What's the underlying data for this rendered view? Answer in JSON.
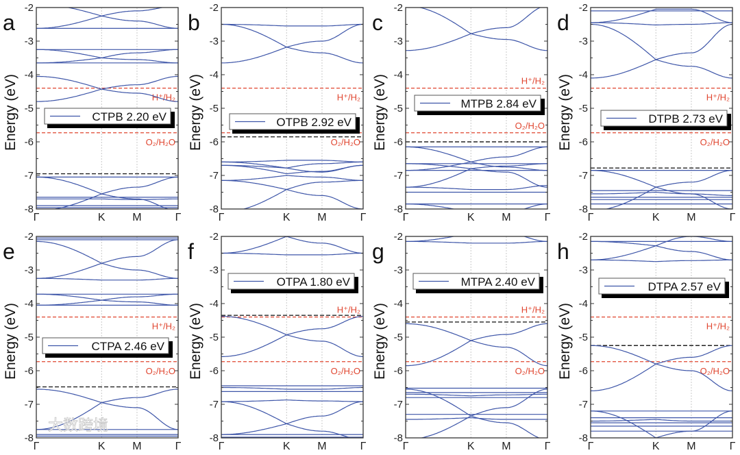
{
  "chart_data": [
    {
      "type": "line",
      "panel": "a",
      "legend": "CTPB 2.20 eV",
      "ylabel": "Energy (eV)",
      "ylim": [
        -8,
        -2
      ],
      "yticks": [
        "-2",
        "-3",
        "-4",
        "-5",
        "-6",
        "-7",
        "-8"
      ],
      "xticks": [
        "Γ",
        "K",
        "M",
        "Γ"
      ],
      "ref_lines": {
        "H+/H2": -4.4,
        "O2/H2O": -5.73
      },
      "vbm": -6.95,
      "bands": [
        [
          -1.9,
          -2.25,
          -2.4,
          -2.62
        ],
        [
          -2.62,
          -2.25,
          -2.1,
          -1.95
        ],
        [
          -2.62,
          -2.62,
          -2.62,
          -2.62
        ],
        [
          -3.25,
          -3.25,
          -3.25,
          -3.25
        ],
        [
          -3.25,
          -3.5,
          -3.55,
          -3.65
        ],
        [
          -3.65,
          -3.5,
          -3.35,
          -3.25
        ],
        [
          -3.65,
          -3.65,
          -3.65,
          -3.65
        ],
        [
          -4.05,
          -4.43,
          -4.55,
          -4.8
        ],
        [
          -4.8,
          -4.43,
          -4.3,
          -4.05
        ],
        [
          -7.05,
          -7.05,
          -7.05,
          -7.05
        ],
        [
          -7.05,
          -7.55,
          -7.7,
          -8.05
        ],
        [
          -8.05,
          -7.55,
          -7.35,
          -7.05
        ],
        [
          -7.65,
          -7.65,
          -7.65,
          -7.65
        ],
        [
          -7.7,
          -7.7,
          -7.72,
          -7.7
        ],
        [
          -7.9,
          -7.9,
          -7.9,
          -7.9
        ],
        [
          -7.96,
          -7.96,
          -7.96,
          -7.96
        ]
      ]
    },
    {
      "type": "line",
      "panel": "b",
      "legend": "OTPB 2.92 eV",
      "ylabel": "Energy (eV)",
      "ylim": [
        -8,
        -2
      ],
      "yticks": [
        "-2",
        "-3",
        "-4",
        "-5",
        "-6",
        "-7",
        "-8"
      ],
      "xticks": [
        "Γ",
        "K",
        "M",
        "Γ"
      ],
      "ref_lines": {
        "H+/H2": -4.4,
        "O2/H2O": -5.73
      },
      "vbm": -5.85,
      "bands": [
        [
          -2.5,
          -2.55,
          -2.55,
          -2.5
        ],
        [
          -2.5,
          -3.18,
          -3.35,
          -3.65
        ],
        [
          -3.65,
          -3.18,
          -3.0,
          -2.5
        ],
        [
          -6.6,
          -6.55,
          -6.55,
          -6.6
        ],
        [
          -6.6,
          -6.78,
          -6.9,
          -6.7
        ],
        [
          -6.7,
          -6.78,
          -6.65,
          -6.6
        ],
        [
          -6.7,
          -6.95,
          -6.88,
          -6.7
        ],
        [
          -7.15,
          -7.0,
          -7.05,
          -7.15
        ],
        [
          -7.15,
          -7.42,
          -7.6,
          -8.0
        ],
        [
          -8.1,
          -7.42,
          -7.2,
          -7.15
        ]
      ]
    },
    {
      "type": "line",
      "panel": "c",
      "legend": "MTPB 2.84 eV",
      "ylabel": "Energy (eV)",
      "ylim": [
        -8,
        -2
      ],
      "yticks": [
        "-2",
        "-3",
        "-4",
        "-5",
        "-6",
        "-7",
        "-8"
      ],
      "xticks": [
        "Γ",
        "K",
        "M",
        "Γ"
      ],
      "ref_lines": {
        "H+/H2": -4.4,
        "O2/H2O": -5.73
      },
      "vbm": -6.0,
      "bands": [
        [
          -1.95,
          -2.78,
          -2.95,
          -3.28
        ],
        [
          -3.28,
          -2.78,
          -2.6,
          -1.95
        ],
        [
          -6.15,
          -6.15,
          -6.15,
          -6.15
        ],
        [
          -6.15,
          -6.6,
          -6.75,
          -6.85
        ],
        [
          -6.85,
          -6.6,
          -6.45,
          -6.15
        ],
        [
          -6.65,
          -6.65,
          -6.65,
          -6.65
        ],
        [
          -6.85,
          -6.85,
          -6.85,
          -6.85
        ],
        [
          -6.65,
          -6.8,
          -6.72,
          -6.65
        ],
        [
          -7.35,
          -6.8,
          -6.9,
          -7.35
        ],
        [
          -7.35,
          -7.42,
          -7.42,
          -7.3
        ],
        [
          -7.5,
          -7.5,
          -7.5,
          -7.5
        ],
        [
          -7.85,
          -7.85,
          -7.85,
          -7.85
        ],
        [
          -7.85,
          -8.1,
          -8.1,
          -7.85
        ]
      ]
    },
    {
      "type": "line",
      "panel": "d",
      "legend": "DTPB 2.73 eV",
      "ylabel": "Energy (eV)",
      "ylim": [
        -8,
        -2
      ],
      "yticks": [
        "-2",
        "-3",
        "-4",
        "-5",
        "-6",
        "-7",
        "-8"
      ],
      "xticks": [
        "Γ",
        "K",
        "M",
        "Γ"
      ],
      "ref_lines": {
        "H+/H2": -4.4,
        "O2/H2O": -5.73
      },
      "vbm": -6.78,
      "bands": [
        [
          -2.1,
          -2.1,
          -2.1,
          -2.1
        ],
        [
          -2.45,
          -2.05,
          -2.05,
          -2.45
        ],
        [
          -2.45,
          -2.52,
          -2.5,
          -2.45
        ],
        [
          -2.5,
          -3.55,
          -3.75,
          -4.1
        ],
        [
          -4.1,
          -3.55,
          -3.35,
          -2.5
        ],
        [
          -6.85,
          -6.85,
          -6.85,
          -6.85
        ],
        [
          -6.85,
          -7.35,
          -7.55,
          -8.0
        ],
        [
          -8.05,
          -7.35,
          -7.2,
          -6.85
        ],
        [
          -7.45,
          -7.45,
          -7.45,
          -7.45
        ],
        [
          -7.55,
          -7.5,
          -7.55,
          -7.6
        ],
        [
          -7.65,
          -7.65,
          -7.65,
          -7.65
        ],
        [
          -7.72,
          -7.72,
          -7.72,
          -7.72
        ],
        [
          -7.85,
          -7.85,
          -7.85,
          -7.85
        ]
      ]
    },
    {
      "type": "line",
      "panel": "e",
      "legend": "CTPA 2.46 eV",
      "ylabel": "Energy (eV)",
      "ylim": [
        -8,
        -2
      ],
      "yticks": [
        "-2",
        "-3",
        "-4",
        "-5",
        "-6",
        "-7",
        "-8"
      ],
      "xticks": [
        "Γ",
        "K",
        "M",
        "Γ"
      ],
      "ref_lines": {
        "H+/H2": -4.4,
        "O2/H2O": -5.73
      },
      "vbm": -6.48,
      "bands": [
        [
          -2.05,
          -2.05,
          -2.05,
          -2.05
        ],
        [
          -2.1,
          -2.1,
          -2.1,
          -2.1
        ],
        [
          -2.15,
          -2.8,
          -3.0,
          -3.25
        ],
        [
          -3.25,
          -2.8,
          -2.6,
          -2.1
        ],
        [
          -3.25,
          -3.3,
          -3.3,
          -3.25
        ],
        [
          -3.72,
          -3.72,
          -3.72,
          -3.72
        ],
        [
          -3.72,
          -3.9,
          -3.95,
          -4.05
        ],
        [
          -4.05,
          -3.9,
          -3.8,
          -3.72
        ],
        [
          -4.05,
          -4.05,
          -4.05,
          -4.05
        ],
        [
          -6.55,
          -6.95,
          -7.1,
          -7.75
        ],
        [
          -7.75,
          -6.95,
          -6.8,
          -6.55
        ],
        [
          -7.75,
          -7.75,
          -7.75,
          -7.75
        ],
        [
          -7.9,
          -7.9,
          -7.9,
          -7.9
        ],
        [
          -7.95,
          -7.95,
          -7.95,
          -7.95
        ]
      ]
    },
    {
      "type": "line",
      "panel": "f",
      "legend": "OTPA 1.80 eV",
      "ylabel": "Energy (eV)",
      "ylim": [
        -8,
        -2
      ],
      "yticks": [
        "-2",
        "-3",
        "-4",
        "-5",
        "-6",
        "-7",
        "-8"
      ],
      "xticks": [
        "Γ",
        "K",
        "M",
        "Γ"
      ],
      "ref_lines": {
        "H+/H2": -4.4,
        "O2/H2O": -5.73
      },
      "vbm": -4.35,
      "bands": [
        [
          -2.5,
          -2.0,
          -2.2,
          -2.5
        ],
        [
          -2.5,
          -2.55,
          -2.55,
          -2.5
        ],
        [
          -4.38,
          -4.93,
          -5.12,
          -5.58
        ],
        [
          -5.58,
          -4.93,
          -4.75,
          -4.38
        ],
        [
          -6.45,
          -6.45,
          -6.45,
          -6.45
        ],
        [
          -6.5,
          -6.55,
          -6.55,
          -6.5
        ],
        [
          -6.62,
          -6.62,
          -6.62,
          -6.62
        ],
        [
          -6.92,
          -6.87,
          -6.9,
          -6.92
        ],
        [
          -6.92,
          -7.58,
          -7.8,
          -8.05
        ],
        [
          -7.9,
          -7.58,
          -7.35,
          -6.92
        ],
        [
          -7.9,
          -7.9,
          -7.9,
          -7.9
        ],
        [
          -7.98,
          -7.98,
          -7.98,
          -7.98
        ]
      ]
    },
    {
      "type": "line",
      "panel": "g",
      "legend": "MTPA 2.40 eV",
      "ylabel": "Energy (eV)",
      "ylim": [
        -8,
        -2
      ],
      "yticks": [
        "-2",
        "-3",
        "-4",
        "-5",
        "-6",
        "-7",
        "-8"
      ],
      "xticks": [
        "Γ",
        "K",
        "M",
        "Γ"
      ],
      "ref_lines": {
        "H+/H2": -4.4,
        "O2/H2O": -5.73
      },
      "vbm": -4.55,
      "bands": [
        [
          -2.15,
          -2.2,
          -2.2,
          -2.15
        ],
        [
          -2.15,
          -1.9,
          -1.9,
          -2.15
        ],
        [
          -4.6,
          -5.1,
          -5.3,
          -5.85
        ],
        [
          -5.85,
          -5.1,
          -4.92,
          -4.6
        ],
        [
          -6.52,
          -6.52,
          -6.52,
          -6.52
        ],
        [
          -6.65,
          -6.65,
          -6.65,
          -6.65
        ],
        [
          -6.7,
          -6.75,
          -6.72,
          -6.7
        ],
        [
          -6.8,
          -6.8,
          -6.8,
          -6.8
        ],
        [
          -6.55,
          -7.35,
          -7.55,
          -8.05
        ],
        [
          -8.05,
          -7.35,
          -7.1,
          -6.55
        ],
        [
          -7.3,
          -7.3,
          -7.3,
          -7.3
        ],
        [
          -7.45,
          -7.4,
          -7.45,
          -7.45
        ]
      ]
    },
    {
      "type": "line",
      "panel": "h",
      "legend": "DTPA 2.57 eV",
      "ylabel": "Energy (eV)",
      "ylim": [
        -8,
        -2
      ],
      "yticks": [
        "-2",
        "-3",
        "-4",
        "-5",
        "-6",
        "-7",
        "-8"
      ],
      "xticks": [
        "Γ",
        "K",
        "M",
        "Γ"
      ],
      "ref_lines": {
        "H+/H2": -4.4,
        "O2/H2O": -5.73
      },
      "vbm": -5.25,
      "bands": [
        [
          -2.15,
          -2.28,
          -2.45,
          -2.7
        ],
        [
          -2.7,
          -2.28,
          -2.0,
          -2.15
        ],
        [
          -2.7,
          -2.75,
          -2.72,
          -2.7
        ],
        [
          -2.15,
          -2.15,
          -2.15,
          -2.15
        ],
        [
          -5.25,
          -5.8,
          -6.0,
          -6.6
        ],
        [
          -6.6,
          -5.8,
          -5.6,
          -5.25
        ],
        [
          -7.2,
          -7.2,
          -7.2,
          -7.2
        ],
        [
          -7.4,
          -7.4,
          -7.4,
          -7.4
        ],
        [
          -7.5,
          -7.45,
          -7.5,
          -7.5
        ],
        [
          -7.55,
          -7.55,
          -7.55,
          -7.55
        ],
        [
          -7.65,
          -7.65,
          -7.65,
          -7.65
        ],
        [
          -7.2,
          -8.0,
          -7.8,
          -7.2
        ],
        [
          -7.8,
          -7.8,
          -7.8,
          -7.8
        ]
      ]
    }
  ],
  "labels": {
    "h_label": "H⁺/H₂",
    "o_label": "O₂/H₂O"
  },
  "colors": {
    "band": "#3d55a8",
    "redox": "#e0452f",
    "vbm": "#222222",
    "grid": "#bbbbbb"
  },
  "watermark": "大数跨境"
}
